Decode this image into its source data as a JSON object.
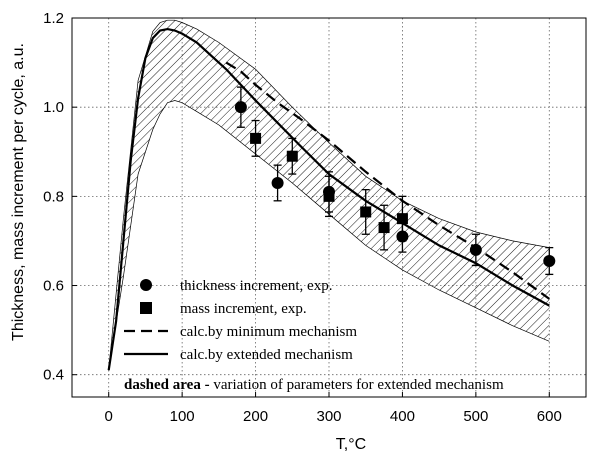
{
  "chart_data": {
    "type": "line",
    "title": "",
    "xlabel": "T,°C",
    "ylabel": "Thickness, mass increment per cycle, a.u.",
    "xlim": [
      -50,
      650
    ],
    "ylim": [
      0.35,
      1.2
    ],
    "x_ticks": [
      0,
      100,
      200,
      300,
      400,
      500,
      600
    ],
    "y_ticks": [
      0.4,
      0.6,
      0.8,
      1.0,
      1.2
    ],
    "y_tick_labels": [
      "0.4",
      "0.6",
      "0.8",
      "1.0",
      "1.2"
    ],
    "grid": true,
    "legend_position": "bottom-left",
    "series": [
      {
        "name": "thickness increment, exp.",
        "kind": "scatter",
        "marker": "circle",
        "color": "#000000",
        "points": [
          {
            "x": 180,
            "y": 1.0,
            "err": 0.045
          },
          {
            "x": 230,
            "y": 0.83,
            "err": 0.04
          },
          {
            "x": 300,
            "y": 0.81,
            "err": 0.045
          },
          {
            "x": 400,
            "y": 0.71,
            "err": 0.035
          },
          {
            "x": 500,
            "y": 0.68,
            "err": 0.035
          },
          {
            "x": 600,
            "y": 0.655,
            "err": 0.03
          }
        ]
      },
      {
        "name": "mass increment, exp.",
        "kind": "scatter",
        "marker": "square",
        "color": "#000000",
        "points": [
          {
            "x": 200,
            "y": 0.93,
            "err": 0.04
          },
          {
            "x": 250,
            "y": 0.89,
            "err": 0.04
          },
          {
            "x": 300,
            "y": 0.8,
            "err": 0.045
          },
          {
            "x": 350,
            "y": 0.765,
            "err": 0.05
          },
          {
            "x": 375,
            "y": 0.73,
            "err": 0.05
          },
          {
            "x": 400,
            "y": 0.75,
            "err": 0.05
          }
        ]
      },
      {
        "name": "calc.by minimum mechanism",
        "kind": "line",
        "style": "dashed",
        "color": "#000000",
        "x": [
          160,
          180,
          200,
          230,
          260,
          300,
          350,
          400,
          450,
          500,
          550,
          600
        ],
        "y": [
          1.1,
          1.08,
          1.05,
          1.01,
          0.975,
          0.925,
          0.855,
          0.79,
          0.735,
          0.685,
          0.63,
          0.57
        ]
      },
      {
        "name": "calc.by extended mechanism",
        "kind": "line",
        "style": "solid",
        "color": "#000000",
        "x": [
          0,
          10,
          20,
          30,
          40,
          50,
          60,
          70,
          80,
          90,
          100,
          120,
          140,
          160,
          180,
          200,
          230,
          260,
          300,
          350,
          400,
          450,
          500,
          550,
          600
        ],
        "y": [
          0.41,
          0.52,
          0.7,
          0.88,
          1.02,
          1.11,
          1.155,
          1.172,
          1.175,
          1.172,
          1.165,
          1.145,
          1.115,
          1.085,
          1.05,
          1.015,
          0.965,
          0.915,
          0.85,
          0.79,
          0.74,
          0.69,
          0.65,
          0.6,
          0.555
        ]
      }
    ],
    "band": {
      "name": "dashed area",
      "pattern": "diagonal-hatch",
      "x": [
        0,
        20,
        40,
        60,
        70,
        80,
        90,
        100,
        120,
        150,
        200,
        250,
        300,
        350,
        400,
        450,
        500,
        550,
        600
      ],
      "upper": [
        0.41,
        0.75,
        1.06,
        1.17,
        1.19,
        1.195,
        1.195,
        1.19,
        1.175,
        1.145,
        1.085,
        1.0,
        0.92,
        0.845,
        0.79,
        0.75,
        0.72,
        0.7,
        0.685
      ],
      "lower": [
        0.41,
        0.62,
        0.85,
        0.95,
        0.985,
        1.01,
        1.015,
        1.01,
        0.99,
        0.96,
        0.895,
        0.83,
        0.76,
        0.69,
        0.635,
        0.59,
        0.55,
        0.51,
        0.475
      ]
    },
    "annotation": {
      "bold": "dashed area -",
      "rest": " variation of parameters for extended mechanism"
    }
  }
}
